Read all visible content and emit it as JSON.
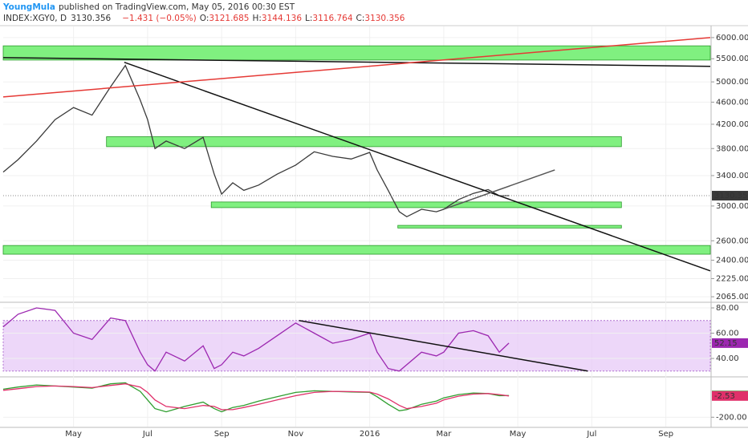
{
  "header": {
    "author": "YoungMula",
    "published": "published on TradingView.com, May 05, 2016 00:30 EST",
    "symbol": "INDEX:XGY0, D",
    "last": "3130.356",
    "change": "−1.431 (−0.05%)",
    "open_label": "O:",
    "open": "3121.685",
    "high_label": "H:",
    "high": "3144.136",
    "low_label": "L:",
    "low": "3116.764",
    "close_label": "C:",
    "close": "3130.356"
  },
  "chart_data": [
    {
      "type": "line",
      "watermark": "XGY0, D",
      "log_scale": true,
      "x": [
        -1.9,
        -1.5,
        -1,
        -0.5,
        0,
        0.5,
        1,
        1.4,
        1.8,
        2,
        2.2,
        2.5,
        3,
        3.5,
        3.8,
        4,
        4.3,
        4.6,
        5,
        5.5,
        6,
        6.5,
        7,
        7.5,
        8,
        8.2,
        8.5,
        8.8,
        9,
        9.4,
        9.8,
        10,
        10.4,
        10.8,
        11.2,
        11.5,
        11.76
      ],
      "xlim": [
        -1.9,
        17.2
      ],
      "xticks": [
        {
          "value": 0,
          "label": "May"
        },
        {
          "value": 2,
          "label": "Jul"
        },
        {
          "value": 4,
          "label": "Sep"
        },
        {
          "value": 6,
          "label": "Nov"
        },
        {
          "value": 8,
          "label": "2016"
        },
        {
          "value": 10,
          "label": "Mar"
        },
        {
          "value": 12,
          "label": "May"
        },
        {
          "value": 14,
          "label": "Jul"
        },
        {
          "value": 16,
          "label": "Sep"
        }
      ],
      "ylim": [
        2025,
        6240
      ],
      "yticks": [
        {
          "value": 6000,
          "label": "6000.00"
        },
        {
          "value": 5500,
          "label": "5500.00"
        },
        {
          "value": 5000,
          "label": "5000.00"
        },
        {
          "value": 4600,
          "label": "4600.00"
        },
        {
          "value": 4200,
          "label": "4200.00"
        },
        {
          "value": 3800,
          "label": "3800.00"
        },
        {
          "value": 3400,
          "label": "3400.00"
        },
        {
          "value": 3000,
          "label": "3000.00"
        },
        {
          "value": 2600,
          "label": "2600.00"
        },
        {
          "value": 2400,
          "label": "2400.00"
        },
        {
          "value": 2225,
          "label": "2225.00"
        },
        {
          "value": 2065,
          "label": "2065.00"
        }
      ],
      "series": [
        {
          "color": "#3a3a3a",
          "values": [
            3450,
            3630,
            3920,
            4280,
            4500,
            4360,
            4900,
            5350,
            4640,
            4280,
            3800,
            3920,
            3800,
            3980,
            3420,
            3150,
            3300,
            3200,
            3270,
            3420,
            3550,
            3750,
            3680,
            3640,
            3740,
            3480,
            3200,
            2930,
            2870,
            2960,
            2930,
            2960,
            3080,
            3160,
            3210,
            3130,
            3130.356
          ]
        }
      ],
      "zones": [
        {
          "x": [
            -1.9,
            17.2
          ],
          "y": [
            5470,
            5800
          ]
        },
        {
          "x": [
            0.89,
            14.8
          ],
          "y": [
            3830,
            3990
          ]
        },
        {
          "x": [
            3.72,
            14.8
          ],
          "y": [
            2980,
            3050
          ]
        },
        {
          "x": [
            8.76,
            14.8
          ],
          "y": [
            2740,
            2770
          ]
        },
        {
          "x": [
            -1.9,
            17.2
          ],
          "y": [
            2460,
            2550
          ]
        }
      ],
      "zone_color": "#80f080",
      "lines": [
        {
          "x": [
            -1.9,
            17.2
          ],
          "y": [
            5525,
            5330
          ],
          "color": "#111111"
        },
        {
          "x": [
            1.37,
            17.2
          ],
          "y": [
            5420,
            2297
          ],
          "color": "#111111"
        },
        {
          "x": [
            -1.9,
            17.2
          ],
          "y": [
            4700,
            6000
          ],
          "color": "#e53935"
        },
        {
          "x": [
            10.0,
            13.0
          ],
          "y": [
            2960,
            3480
          ],
          "color": "#555555"
        }
      ]
    },
    {
      "type": "line",
      "ylim": [
        26.7,
        83.8
      ],
      "yticks": [
        {
          "value": 80,
          "label": "80.00"
        },
        {
          "value": 60,
          "label": "60.00"
        },
        {
          "value": 40,
          "label": "40.00"
        }
      ],
      "band": [
        30,
        70
      ],
      "band_color": "#e6c6f7",
      "series": [
        {
          "color": "#9c27b0",
          "values": [
            65,
            75,
            80,
            78,
            60,
            55,
            72,
            70,
            45,
            35,
            30,
            45,
            38,
            50,
            32,
            35,
            45,
            42,
            48,
            58,
            68,
            60,
            52,
            55,
            60,
            45,
            32,
            30,
            35,
            45,
            42,
            45,
            60,
            62,
            58,
            45,
            52.15
          ]
        }
      ],
      "lines": [
        {
          "x": [
            6.09,
            13.89
          ],
          "y": [
            70,
            30
          ],
          "color": "#111111"
        }
      ]
    },
    {
      "type": "line",
      "ylim": [
        -287,
        160
      ],
      "yticks": [
        {
          "value": -200,
          "label": "-200.00"
        }
      ],
      "series": [
        {
          "color": "#2e9e2e",
          "values": [
            60,
            80,
            100,
            90,
            80,
            70,
            110,
            120,
            40,
            -40,
            -120,
            -150,
            -100,
            -60,
            -120,
            -150,
            -110,
            -90,
            -50,
            -10,
            30,
            45,
            40,
            35,
            30,
            -10,
            -80,
            -140,
            -130,
            -80,
            -50,
            -20,
            10,
            25,
            20,
            0,
            1.51
          ]
        },
        {
          "color": "#e0306a",
          "values": [
            50,
            65,
            85,
            90,
            85,
            75,
            95,
            110,
            80,
            30,
            -40,
            -100,
            -120,
            -90,
            -100,
            -130,
            -130,
            -110,
            -80,
            -40,
            0,
            30,
            40,
            38,
            33,
            15,
            -30,
            -90,
            -120,
            -100,
            -70,
            -40,
            -5,
            15,
            20,
            10,
            -2.53
          ]
        }
      ]
    }
  ]
}
